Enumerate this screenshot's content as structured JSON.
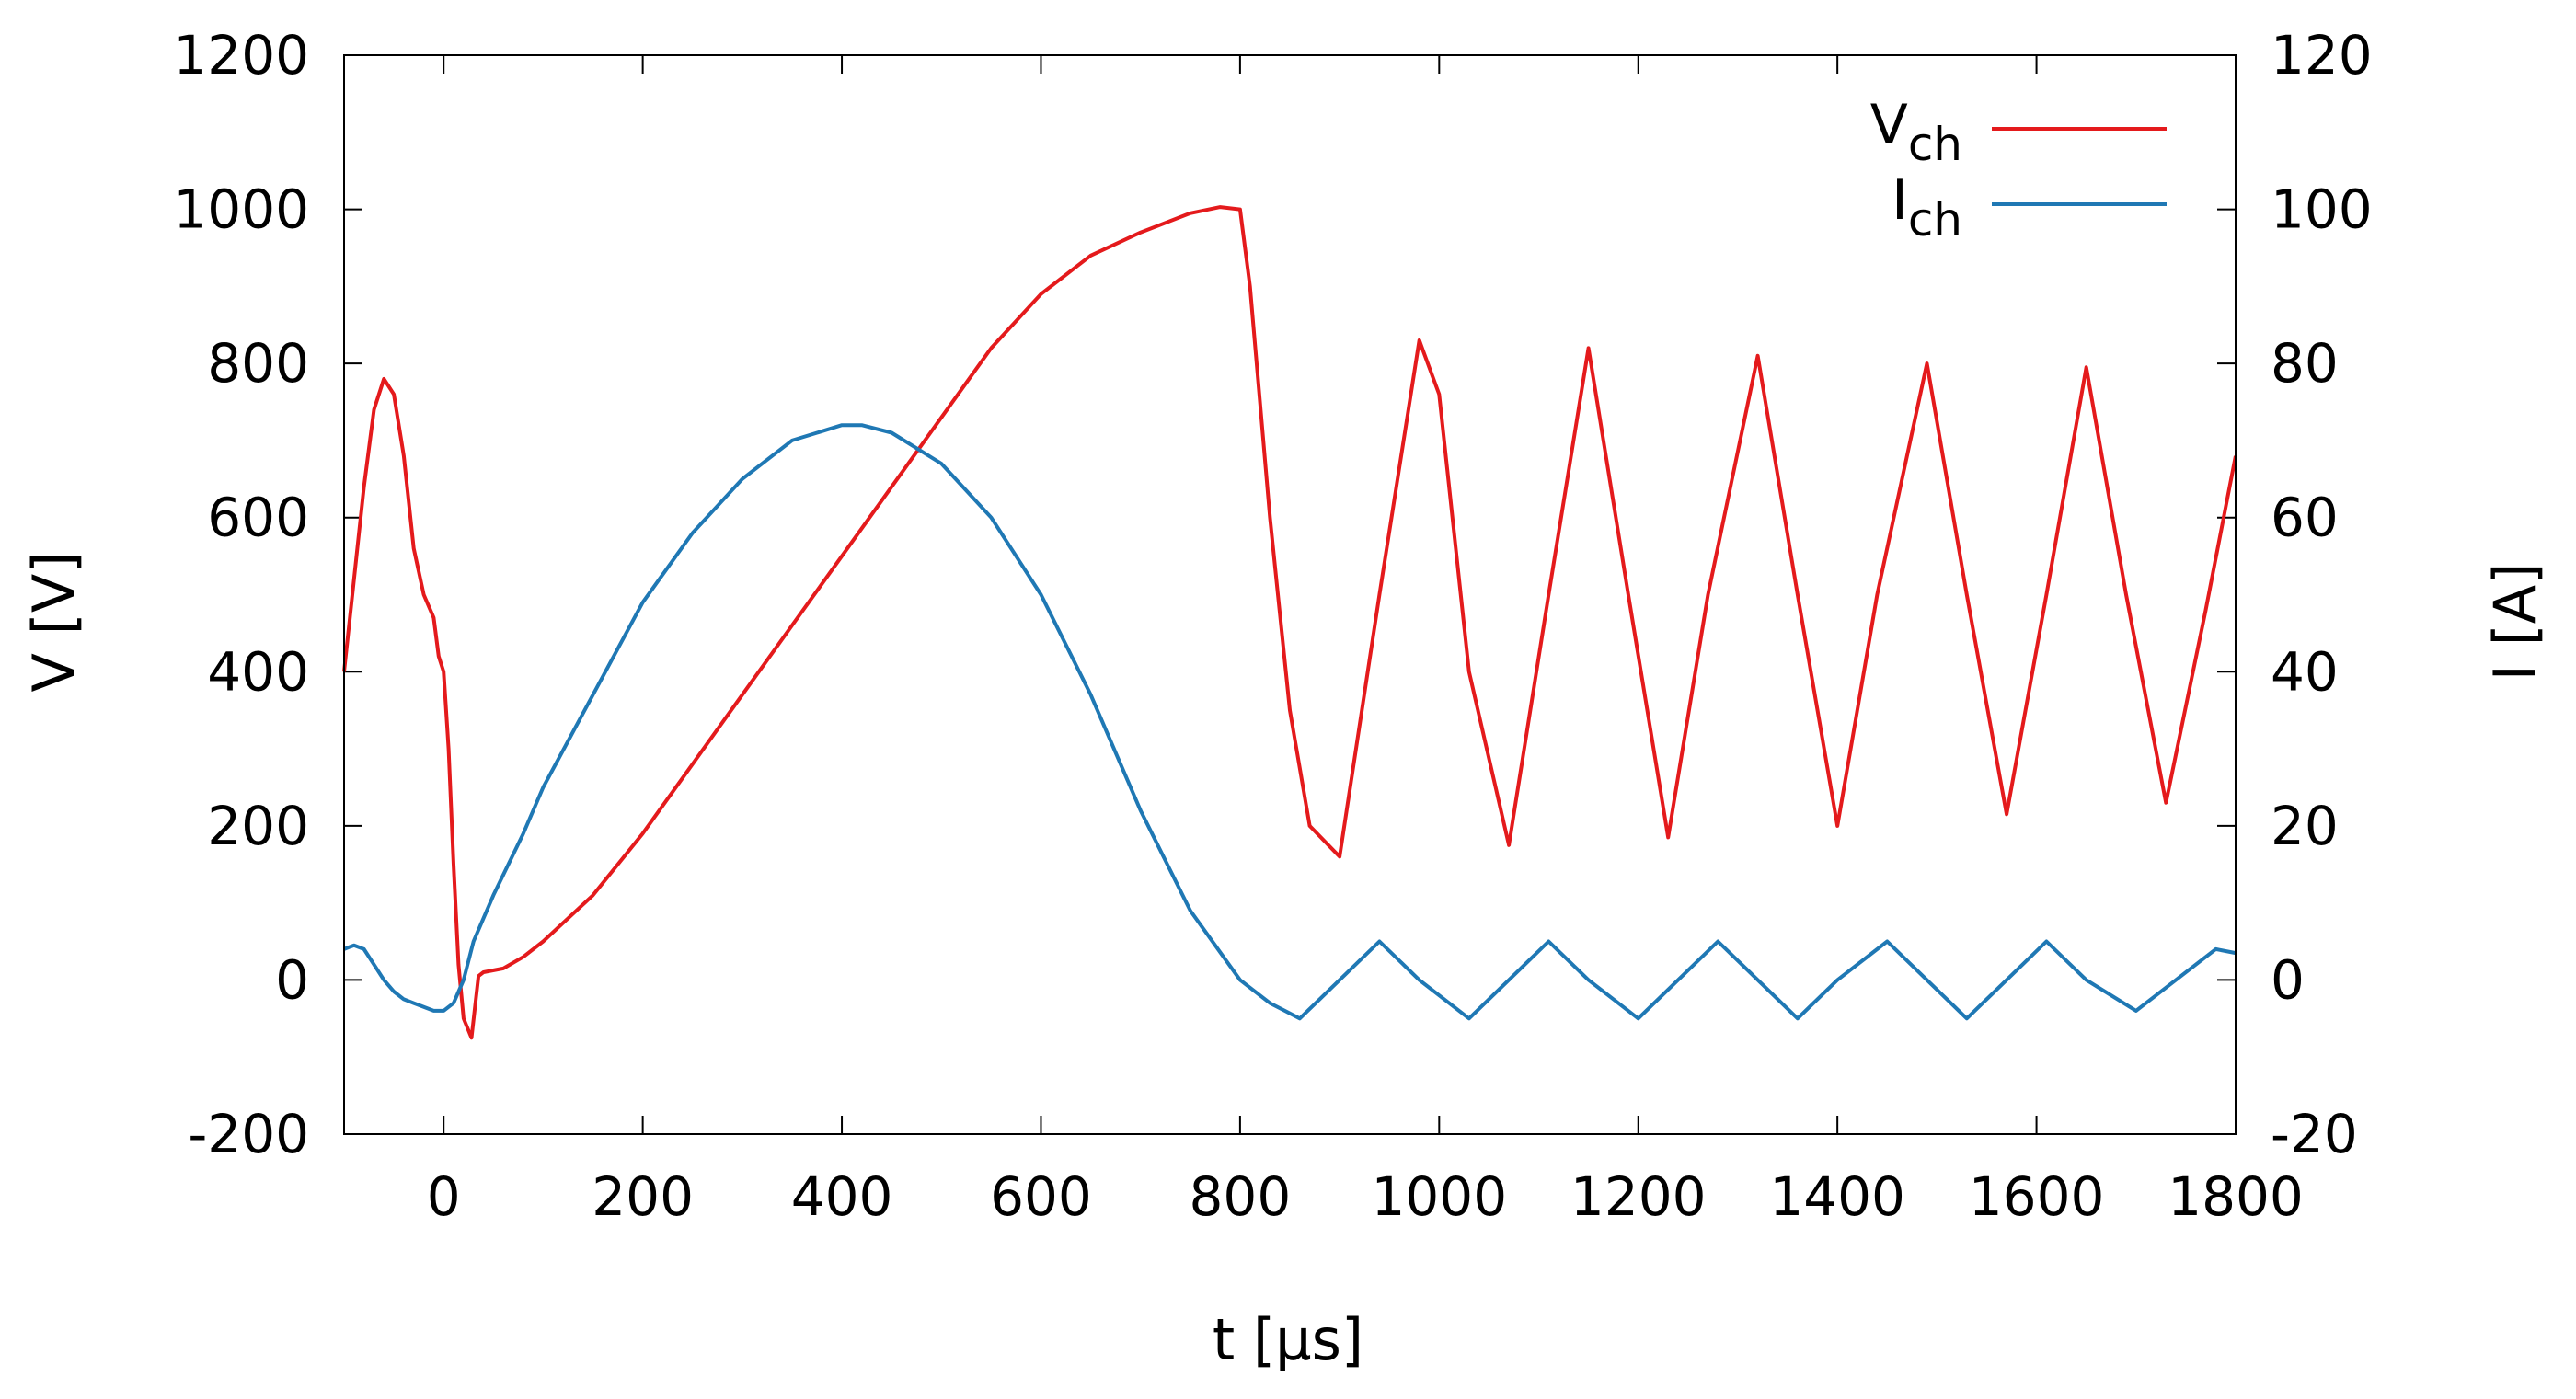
{
  "chart_data": {
    "type": "line",
    "xlabel": "t [µs]",
    "ylabel": "V [V]",
    "y2label": "I [A]",
    "xlim": [
      -100,
      1800
    ],
    "ylim": [
      -200,
      1200
    ],
    "y2lim": [
      -20,
      120
    ],
    "xticks": [
      "0",
      "200",
      "400",
      "600",
      "800",
      "1000",
      "1200",
      "1400",
      "1600",
      "1800"
    ],
    "yticks": [
      "-200",
      "0",
      "200",
      "400",
      "600",
      "800",
      "1000",
      "1200"
    ],
    "y2ticks": [
      "-20",
      "0",
      "20",
      "40",
      "60",
      "80",
      "100",
      "120"
    ],
    "legend_position": "top-right",
    "series": [
      {
        "name_main": "V",
        "name_sub": "ch",
        "axis": "left",
        "color": "#e41a1c",
        "x": [
          -100,
          -90,
          -80,
          -70,
          -60,
          -50,
          -40,
          -30,
          -20,
          -10,
          -5,
          0,
          5,
          10,
          15,
          20,
          28,
          35,
          40,
          60,
          80,
          100,
          150,
          200,
          250,
          300,
          350,
          400,
          450,
          500,
          550,
          600,
          650,
          700,
          750,
          780,
          800,
          810,
          830,
          850,
          870,
          900,
          940,
          980,
          1000,
          1030,
          1070,
          1110,
          1150,
          1190,
          1230,
          1270,
          1320,
          1360,
          1400,
          1440,
          1490,
          1530,
          1570,
          1610,
          1650,
          1690,
          1730,
          1770,
          1800
        ],
        "values": [
          400,
          520,
          640,
          740,
          780,
          760,
          680,
          560,
          500,
          470,
          420,
          400,
          300,
          150,
          20,
          -50,
          -75,
          5,
          10,
          15,
          30,
          50,
          110,
          190,
          280,
          370,
          460,
          550,
          640,
          730,
          820,
          890,
          940,
          970,
          995,
          1003,
          1000,
          900,
          600,
          350,
          200,
          160,
          500,
          830,
          760,
          400,
          175,
          500,
          820,
          500,
          185,
          500,
          810,
          500,
          200,
          500,
          800,
          500,
          215,
          500,
          795,
          500,
          230,
          480,
          680
        ]
      },
      {
        "name_main": "I",
        "name_sub": "ch",
        "axis": "right",
        "color": "#1f78b4",
        "x": [
          -100,
          -90,
          -80,
          -70,
          -60,
          -50,
          -40,
          -30,
          -20,
          -10,
          0,
          10,
          20,
          30,
          50,
          80,
          100,
          150,
          200,
          250,
          300,
          350,
          400,
          420,
          450,
          500,
          550,
          600,
          650,
          700,
          750,
          800,
          830,
          860,
          900,
          940,
          980,
          1030,
          1070,
          1110,
          1150,
          1200,
          1240,
          1280,
          1320,
          1360,
          1400,
          1450,
          1490,
          1530,
          1570,
          1610,
          1650,
          1700,
          1740,
          1780,
          1800
        ],
        "values": [
          4,
          4.5,
          4,
          2,
          0,
          -1.5,
          -2.5,
          -3,
          -3.5,
          -4,
          -4,
          -3,
          0,
          5,
          11,
          19,
          25,
          37,
          49,
          58,
          65,
          70,
          72,
          72,
          71,
          67,
          60,
          50,
          37,
          22,
          9,
          0,
          -3,
          -5,
          0,
          5,
          0,
          -5,
          0,
          5,
          0,
          -5,
          0,
          5,
          0,
          -5,
          0,
          5,
          0,
          -5,
          0,
          5,
          0,
          -4,
          0,
          4,
          3.5
        ]
      }
    ]
  }
}
